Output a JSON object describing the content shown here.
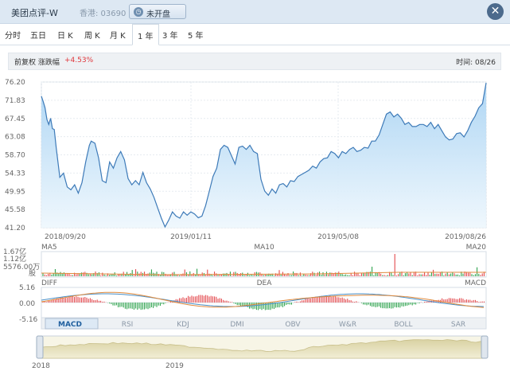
{
  "header": {
    "title": "美团点评-W",
    "market_code": "香港: 03690",
    "status_label": "未开盘",
    "status_icon": "clock-icon",
    "close_icon": "close-icon"
  },
  "tabs": [
    {
      "label": "分时"
    },
    {
      "label": "五日"
    },
    {
      "label": "日 K"
    },
    {
      "label": "周 K"
    },
    {
      "label": "月 K"
    },
    {
      "label": "1 年",
      "active": true
    },
    {
      "label": "3 年"
    },
    {
      "label": "5 年"
    }
  ],
  "info": {
    "adjust_label": "前复权 涨跌幅",
    "change": "+4.53%",
    "time_label": "时间: 08/26",
    "up_color": "#e0373c",
    "down_color": "#1a9a3c"
  },
  "chart_data": {
    "type": "area",
    "price_ticks": [
      "76.20",
      "71.83",
      "67.45",
      "63.08",
      "58.70",
      "54.33",
      "49.95",
      "45.58",
      "41.20"
    ],
    "ylim": [
      41.2,
      76.2
    ],
    "date_labels": [
      "2018/09/20",
      "2019/01/11",
      "2019/05/08",
      "2019/08/26"
    ],
    "x_range": [
      "2018-09-20",
      "2019-08-26"
    ],
    "series": [
      {
        "values": [
          [
            0,
            72.8
          ],
          [
            1,
            71.5
          ],
          [
            2,
            70.0
          ],
          [
            3,
            67.2
          ],
          [
            4,
            66.0
          ],
          [
            5,
            67.5
          ],
          [
            6,
            65.0
          ],
          [
            7,
            64.8
          ],
          [
            8,
            60.5
          ],
          [
            10,
            53.3
          ],
          [
            12,
            54.3
          ],
          [
            14,
            51.0
          ],
          [
            16,
            50.3
          ],
          [
            18,
            51.5
          ],
          [
            20,
            49.5
          ],
          [
            22,
            52.0
          ],
          [
            24,
            57.0
          ],
          [
            26,
            61.0
          ],
          [
            27,
            62.0
          ],
          [
            29,
            61.5
          ],
          [
            31,
            58.0
          ],
          [
            33,
            52.5
          ],
          [
            35,
            52.0
          ],
          [
            37,
            57.0
          ],
          [
            39,
            55.5
          ],
          [
            41,
            58.0
          ],
          [
            43,
            59.5
          ],
          [
            45,
            57.5
          ],
          [
            47,
            53.0
          ],
          [
            49,
            51.5
          ],
          [
            51,
            52.5
          ],
          [
            53,
            51.5
          ],
          [
            55,
            54.5
          ],
          [
            57,
            52.0
          ],
          [
            59,
            50.5
          ],
          [
            61,
            48.5
          ],
          [
            63,
            46.0
          ],
          [
            65,
            43.5
          ],
          [
            67,
            41.4
          ],
          [
            69,
            43.0
          ],
          [
            71,
            45.0
          ],
          [
            73,
            44.0
          ],
          [
            75,
            43.5
          ],
          [
            77,
            45.0
          ],
          [
            79,
            44.2
          ],
          [
            81,
            45.0
          ],
          [
            83,
            44.5
          ],
          [
            85,
            43.6
          ],
          [
            87,
            44.0
          ],
          [
            89,
            46.5
          ],
          [
            91,
            50.0
          ],
          [
            93,
            53.5
          ],
          [
            95,
            55.5
          ],
          [
            97,
            60.0
          ],
          [
            99,
            61.0
          ],
          [
            101,
            60.5
          ],
          [
            103,
            58.5
          ],
          [
            105,
            56.5
          ],
          [
            107,
            60.5
          ],
          [
            109,
            60.8
          ],
          [
            111,
            60.0
          ],
          [
            113,
            61.0
          ],
          [
            115,
            59.5
          ],
          [
            117,
            59.0
          ],
          [
            119,
            52.8
          ],
          [
            121,
            50.0
          ],
          [
            123,
            49.0
          ],
          [
            125,
            50.5
          ],
          [
            127,
            49.5
          ],
          [
            129,
            51.5
          ],
          [
            131,
            51.8
          ],
          [
            133,
            51.0
          ],
          [
            135,
            52.5
          ],
          [
            137,
            52.3
          ],
          [
            139,
            53.5
          ],
          [
            141,
            54.0
          ],
          [
            143,
            54.5
          ],
          [
            145,
            55.0
          ],
          [
            147,
            56.0
          ],
          [
            149,
            55.5
          ],
          [
            151,
            57.0
          ],
          [
            153,
            57.8
          ],
          [
            155,
            58.0
          ],
          [
            157,
            59.5
          ],
          [
            159,
            59.0
          ],
          [
            161,
            58.0
          ],
          [
            163,
            59.5
          ],
          [
            165,
            59.0
          ],
          [
            167,
            60.0
          ],
          [
            169,
            60.5
          ],
          [
            171,
            59.5
          ],
          [
            173,
            59.8
          ],
          [
            175,
            60.5
          ],
          [
            177,
            60.3
          ],
          [
            179,
            62.0
          ],
          [
            181,
            62.0
          ],
          [
            183,
            63.5
          ],
          [
            185,
            66.0
          ],
          [
            187,
            68.5
          ],
          [
            189,
            69.0
          ],
          [
            191,
            67.8
          ],
          [
            193,
            68.5
          ],
          [
            195,
            67.5
          ],
          [
            197,
            66.0
          ],
          [
            199,
            66.5
          ],
          [
            201,
            65.5
          ],
          [
            203,
            65.5
          ],
          [
            205,
            66.0
          ],
          [
            207,
            66.0
          ],
          [
            209,
            65.5
          ],
          [
            211,
            66.5
          ],
          [
            213,
            65.0
          ],
          [
            215,
            66.0
          ],
          [
            217,
            64.5
          ],
          [
            219,
            63.0
          ],
          [
            221,
            62.3
          ],
          [
            223,
            62.5
          ],
          [
            225,
            63.8
          ],
          [
            227,
            64.0
          ],
          [
            229,
            63.0
          ],
          [
            231,
            64.5
          ],
          [
            233,
            66.5
          ],
          [
            235,
            68.0
          ],
          [
            237,
            70.0
          ],
          [
            239,
            71.0
          ],
          [
            241,
            76.0
          ]
        ]
      }
    ],
    "volume": {
      "labels": [
        "MA5",
        "MA10",
        "MA20"
      ],
      "ticks": [
        "1.67亿",
        "1.12亿",
        "5576.00万",
        "股"
      ]
    },
    "macd": {
      "labels": [
        "DIFF",
        "DEA",
        "MACD"
      ],
      "ticks": [
        "5.16",
        "0.00",
        "-5.16"
      ]
    },
    "indicator_tabs": [
      "MACD",
      "RSI",
      "KDJ",
      "DMI",
      "OBV",
      "W&R",
      "BOLL",
      "SAR"
    ],
    "active_indicator": "MACD",
    "overview_labels": [
      "2018",
      "2019"
    ]
  }
}
